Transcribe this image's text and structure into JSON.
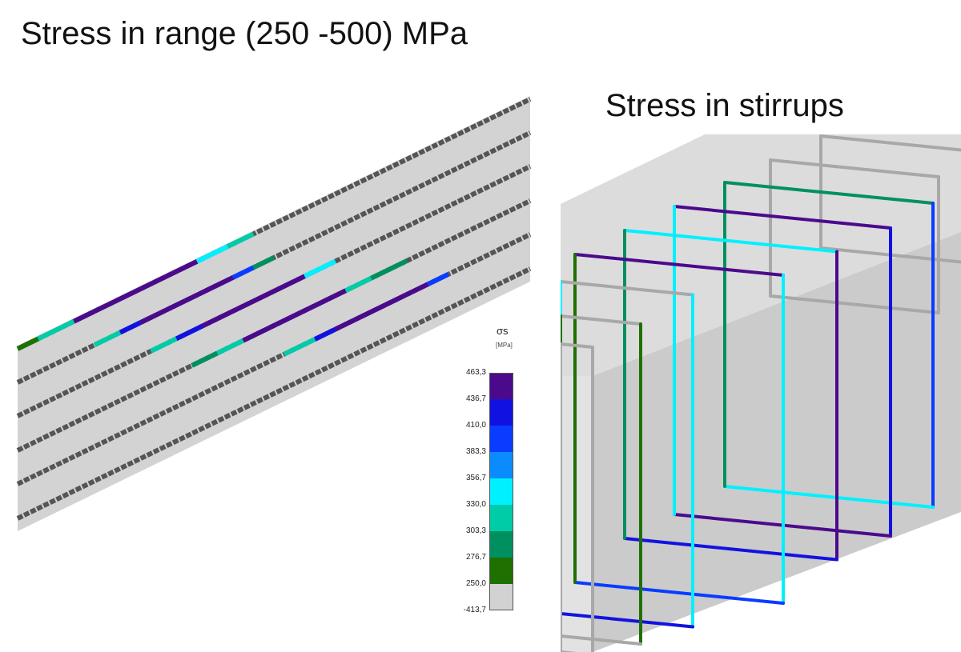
{
  "titles": {
    "main": "Stress in range (250 -500) MPa",
    "stirrups": "Stress in stirrups"
  },
  "legend": {
    "symbol": "σs",
    "unit": "[MPa]",
    "ticks": [
      "463,3",
      "436,7",
      "410,0",
      "383,3",
      "356,7",
      "330,0",
      "303,3",
      "276,7",
      "250,0",
      "-413,7"
    ],
    "colors": [
      "#4b0a8c",
      "#1212e0",
      "#0a3cff",
      "#0a8cff",
      "#00f0ff",
      "#00cca8",
      "#009060",
      "#1e7000",
      "#d2d2d2"
    ]
  }
}
